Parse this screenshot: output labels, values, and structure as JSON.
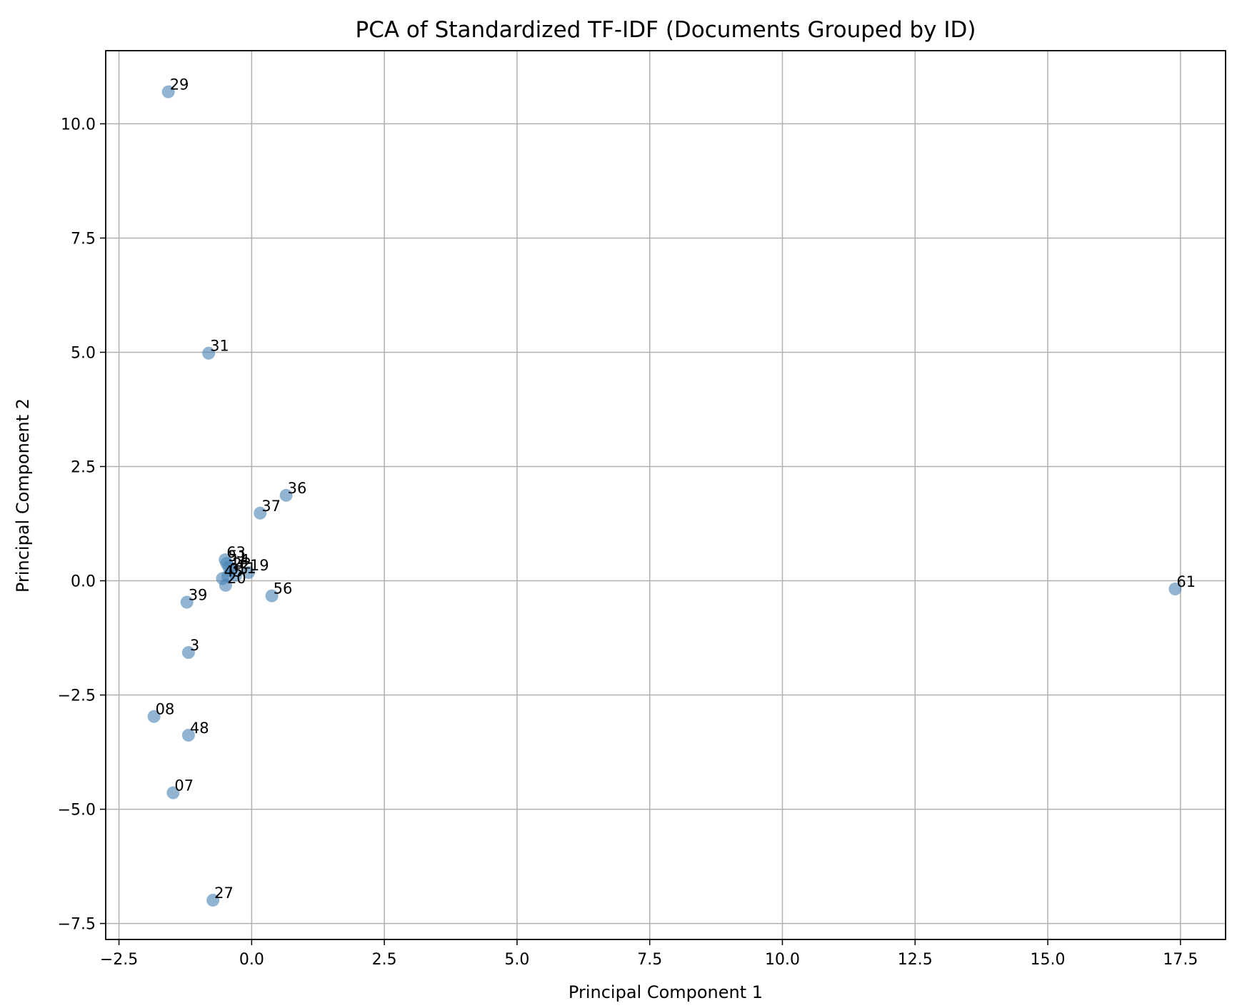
{
  "chart_data": {
    "type": "scatter",
    "title": "PCA of Standardized TF-IDF (Documents Grouped by ID)",
    "xlabel": "Principal Component 1",
    "ylabel": "Principal Component 2",
    "xlim": [
      -2.75,
      18.35
    ],
    "ylim": [
      -7.85,
      11.6
    ],
    "xticks": [
      -2.5,
      0.0,
      2.5,
      5.0,
      7.5,
      10.0,
      12.5,
      15.0,
      17.5
    ],
    "yticks": [
      -7.5,
      -5.0,
      -2.5,
      0.0,
      2.5,
      5.0,
      7.5,
      10.0
    ],
    "xtick_labels": [
      "−2.5",
      "0.0",
      "2.5",
      "5.0",
      "7.5",
      "10.0",
      "12.5",
      "15.0",
      "17.5"
    ],
    "ytick_labels": [
      "−7.5",
      "−5.0",
      "−2.5",
      "0.0",
      "2.5",
      "5.0",
      "7.5",
      "10.0"
    ],
    "grid": true,
    "marker_color": "#4682b4",
    "points": [
      {
        "label": "29",
        "x": -1.57,
        "y": 10.7
      },
      {
        "label": "31",
        "x": -0.81,
        "y": 4.98
      },
      {
        "label": "36",
        "x": 0.65,
        "y": 1.87
      },
      {
        "label": "37",
        "x": 0.16,
        "y": 1.48
      },
      {
        "label": "63",
        "x": -0.5,
        "y": 0.46
      },
      {
        "label": "51",
        "x": -0.47,
        "y": 0.38
      },
      {
        "label": "14",
        "x": -0.43,
        "y": 0.3
      },
      {
        "label": "22",
        "x": -0.39,
        "y": 0.22
      },
      {
        "label": "19",
        "x": -0.06,
        "y": 0.18
      },
      {
        "label": "11",
        "x": -0.3,
        "y": 0.12
      },
      {
        "label": "05",
        "x": -0.45,
        "y": 0.1
      },
      {
        "label": "45",
        "x": -0.55,
        "y": 0.05
      },
      {
        "label": "20",
        "x": -0.49,
        "y": -0.1
      },
      {
        "label": "56",
        "x": 0.38,
        "y": -0.33
      },
      {
        "label": "61",
        "x": 17.4,
        "y": -0.18
      },
      {
        "label": "39",
        "x": -1.22,
        "y": -0.47
      },
      {
        "label": "3",
        "x": -1.19,
        "y": -1.57
      },
      {
        "label": "08",
        "x": -1.84,
        "y": -2.97
      },
      {
        "label": "48",
        "x": -1.19,
        "y": -3.38
      },
      {
        "label": "07",
        "x": -1.48,
        "y": -4.64
      },
      {
        "label": "27",
        "x": -0.73,
        "y": -6.99
      }
    ]
  }
}
